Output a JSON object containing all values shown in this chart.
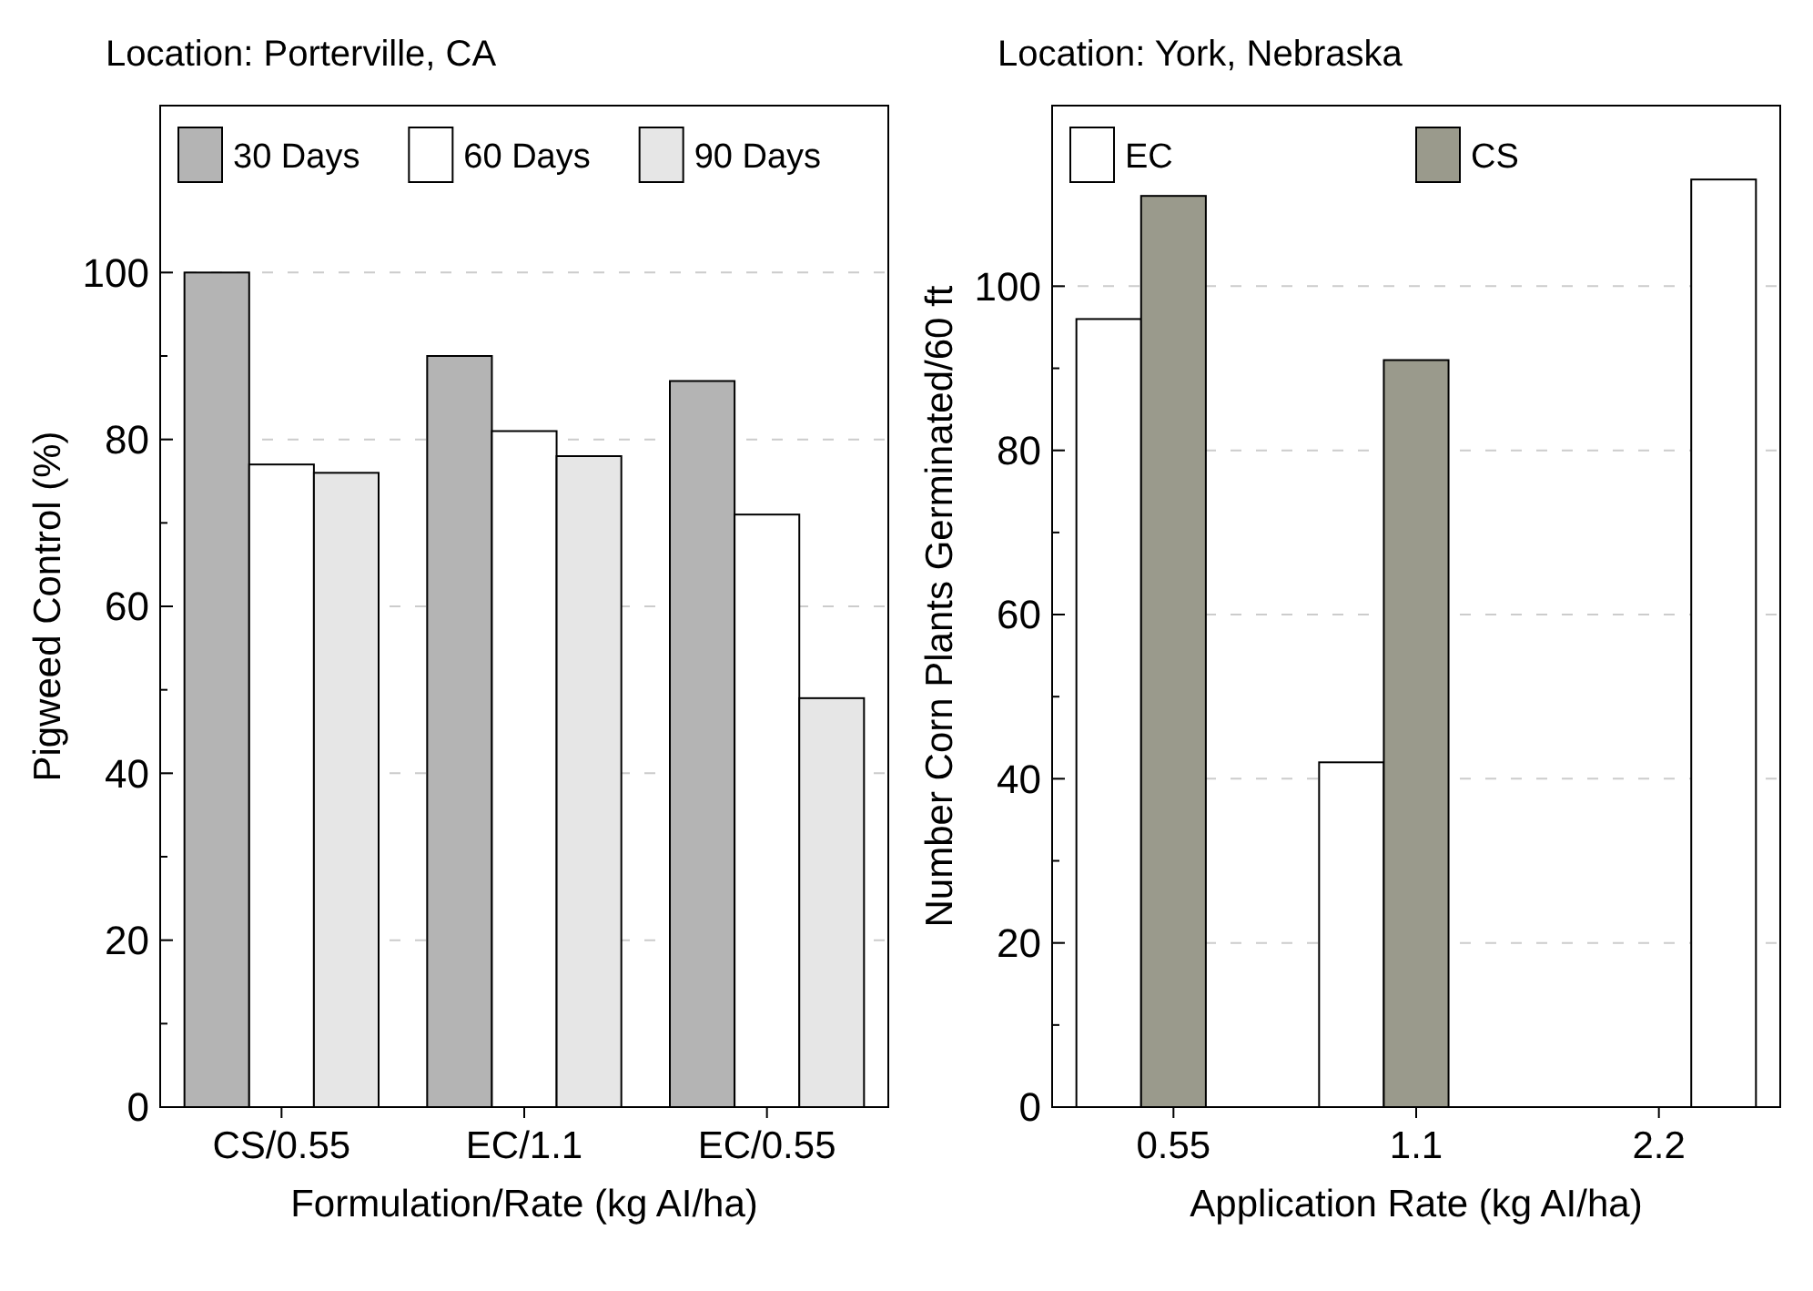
{
  "chart_data": [
    {
      "type": "bar",
      "title": "Location: Porterville, CA",
      "xlabel": "Formulation/Rate (kg AI/ha)",
      "ylabel": "Pigweed Control (%)",
      "categories": [
        "CS/0.55",
        "EC/1.1",
        "EC/0.55"
      ],
      "series": [
        {
          "name": "30 Days",
          "color": "#b4b4b4",
          "values": [
            100,
            90,
            87
          ]
        },
        {
          "name": "60 Days",
          "color": "#ffffff",
          "values": [
            77,
            81,
            71
          ]
        },
        {
          "name": "90 Days",
          "color": "#e6e6e6",
          "values": [
            76,
            78,
            49
          ]
        }
      ],
      "ylim": [
        0,
        120
      ],
      "yticks": [
        0,
        {
          "value": 10,
          "label": null
        },
        20,
        {
          "value": 30,
          "label": null
        },
        40,
        {
          "value": 50,
          "label": null
        },
        60,
        {
          "value": 70,
          "label": null
        },
        80,
        {
          "value": 90,
          "label": null
        },
        100
      ],
      "grid": "y",
      "legend": "top"
    },
    {
      "type": "bar",
      "title": "Location: York, Nebraska",
      "xlabel": "Application Rate (kg AI/ha)",
      "ylabel": "Number Corn Plants Germinated/60 ft",
      "categories": [
        "0.55",
        "1.1",
        "2.2"
      ],
      "series": [
        {
          "name": "EC",
          "color": "#ffffff",
          "values": [
            96,
            42,
            null
          ]
        },
        {
          "name": "CS",
          "color": "#9a9a8c",
          "values": [
            111,
            91,
            null
          ]
        },
        {
          "color": "#ffffff",
          "values": [
            null,
            null,
            113
          ]
        }
      ],
      "ylim": [
        0,
        122
      ],
      "yticks": [
        0,
        {
          "value": 10,
          "label": null
        },
        20,
        {
          "value": 30,
          "label": null
        },
        40,
        {
          "value": 50,
          "label": null
        },
        60,
        {
          "value": 70,
          "label": null
        },
        80,
        {
          "value": 90,
          "label": null
        },
        100
      ],
      "grid": "y",
      "legend": "top"
    }
  ]
}
